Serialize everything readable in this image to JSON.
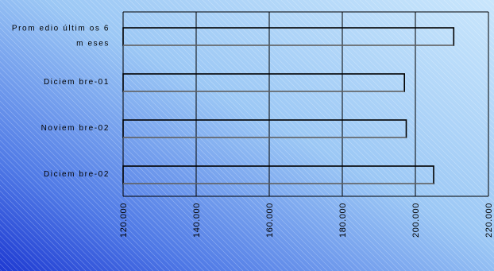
{
  "chart_data": {
    "type": "bar",
    "orientation": "horizontal",
    "categories": [
      [
        "Prom edio últim os 6",
        "m eses"
      ],
      [
        "Diciem bre-01"
      ],
      [
        "Noviem bre-02"
      ],
      [
        "Diciem bre-02"
      ]
    ],
    "values": [
      210500,
      197000,
      197500,
      205000
    ],
    "x_ticks": [
      "120.000",
      "140.000",
      "160.000",
      "180.000",
      "200.000",
      "220.000"
    ],
    "xlim": [
      120000,
      220000
    ],
    "title": "",
    "xlabel": "",
    "ylabel": "",
    "grid": true,
    "legend": "none",
    "colors": {
      "background_light": "#c4e2fb",
      "background_dark": "#1f3fd6",
      "bar_stroke": "#000000",
      "grid": "#000000"
    }
  }
}
